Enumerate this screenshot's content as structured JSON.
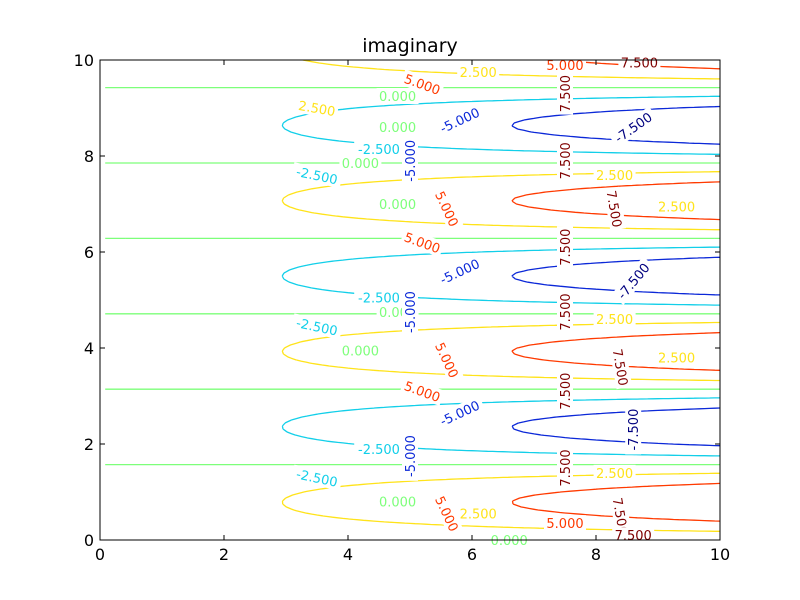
{
  "chart_data": {
    "type": "contour",
    "title": "imaginary",
    "xlim": [
      0,
      10
    ],
    "ylim": [
      0,
      10
    ],
    "x_ticks": [
      0,
      2,
      4,
      6,
      8,
      10
    ],
    "y_ticks": [
      0,
      2,
      4,
      6,
      8,
      10
    ],
    "grid": false,
    "colors": {
      "-7.5": "#00007f",
      "-5": "#0b28d8",
      "-2.5": "#12cfe9",
      "0": "#7dff7a",
      "2.5": "#ffe31a",
      "5": "#ff3a00",
      "7.5": "#7f0000"
    },
    "levels": [
      {
        "value": -7.5,
        "label": "-7.500"
      },
      {
        "value": -5,
        "label": "-5.000"
      },
      {
        "value": -2.5,
        "label": "-2.500"
      },
      {
        "value": 0,
        "label": "0.000"
      },
      {
        "value": 2.5,
        "label": "2.500"
      },
      {
        "value": 5,
        "label": "5.000"
      },
      {
        "value": 7.5,
        "label": "7.500"
      }
    ],
    "labels": [
      {
        "text": "7.500",
        "level": 7.5,
        "x": 8.7,
        "y": 9.95,
        "rot": 0
      },
      {
        "text": "5.000",
        "level": 5,
        "x": 7.5,
        "y": 9.9,
        "rot": 0
      },
      {
        "text": "2.500",
        "level": 2.5,
        "x": 6.1,
        "y": 9.75,
        "rot": 0
      },
      {
        "text": "5.000",
        "level": 5,
        "x": 5.2,
        "y": 9.5,
        "rot": 20
      },
      {
        "text": "7.500",
        "level": 7.5,
        "x": 7.5,
        "y": 9.3,
        "rot": -90
      },
      {
        "text": "2.500",
        "level": 2.5,
        "x": 3.5,
        "y": 9.0,
        "rot": 10
      },
      {
        "text": "0.000",
        "level": 0,
        "x": 4.8,
        "y": 9.25,
        "rot": 0
      },
      {
        "text": "-5.000",
        "level": -5,
        "x": 5.8,
        "y": 8.75,
        "rot": -25
      },
      {
        "text": "-7.500",
        "level": -7.5,
        "x": 8.6,
        "y": 8.6,
        "rot": -35
      },
      {
        "text": "0.000",
        "level": 0,
        "x": 4.8,
        "y": 8.6,
        "rot": 0
      },
      {
        "text": "-2.500",
        "level": -2.5,
        "x": 4.5,
        "y": 8.15,
        "rot": 0
      },
      {
        "text": "-5.000",
        "level": -5,
        "x": 5.0,
        "y": 7.9,
        "rot": -90
      },
      {
        "text": "7.500",
        "level": 7.5,
        "x": 7.5,
        "y": 7.9,
        "rot": -90
      },
      {
        "text": "0.000",
        "level": 0,
        "x": 4.2,
        "y": 7.85,
        "rot": 0
      },
      {
        "text": "-2.500",
        "level": -2.5,
        "x": 3.5,
        "y": 7.6,
        "rot": 12
      },
      {
        "text": "2.500",
        "level": 2.5,
        "x": 8.3,
        "y": 7.6,
        "rot": 0
      },
      {
        "text": "0.000",
        "level": 0,
        "x": 4.8,
        "y": 7.0,
        "rot": 0
      },
      {
        "text": "5.000",
        "level": 5,
        "x": 5.6,
        "y": 6.9,
        "rot": 65
      },
      {
        "text": "7.500",
        "level": 7.5,
        "x": 8.3,
        "y": 6.9,
        "rot": 80
      },
      {
        "text": "2.500",
        "level": 2.5,
        "x": 9.3,
        "y": 6.95,
        "rot": 0
      },
      {
        "text": "5.000",
        "level": 5,
        "x": 5.2,
        "y": 6.2,
        "rot": 20
      },
      {
        "text": "7.500",
        "level": 7.5,
        "x": 7.5,
        "y": 6.1,
        "rot": -90
      },
      {
        "text": "-5.000",
        "level": -5,
        "x": 5.8,
        "y": 5.6,
        "rot": -25
      },
      {
        "text": "-7.500",
        "level": -7.5,
        "x": 8.6,
        "y": 5.4,
        "rot": -50
      },
      {
        "text": "-2.500",
        "level": -2.5,
        "x": 4.5,
        "y": 5.05,
        "rot": 0
      },
      {
        "text": "0.000",
        "level": 0,
        "x": 4.8,
        "y": 4.75,
        "rot": 0
      },
      {
        "text": "-5.000",
        "level": -5,
        "x": 5.0,
        "y": 4.75,
        "rot": -90
      },
      {
        "text": "7.500",
        "level": 7.5,
        "x": 7.5,
        "y": 4.75,
        "rot": -90
      },
      {
        "text": "2.500",
        "level": 2.5,
        "x": 8.3,
        "y": 4.6,
        "rot": 0
      },
      {
        "text": "-2.500",
        "level": -2.5,
        "x": 3.5,
        "y": 4.45,
        "rot": 12
      },
      {
        "text": "0.000",
        "level": 0,
        "x": 4.2,
        "y": 3.95,
        "rot": 0
      },
      {
        "text": "2.500",
        "level": 2.5,
        "x": 9.3,
        "y": 3.8,
        "rot": 0
      },
      {
        "text": "5.000",
        "level": 5,
        "x": 5.6,
        "y": 3.75,
        "rot": 65
      },
      {
        "text": "7.500",
        "level": 7.5,
        "x": 8.4,
        "y": 3.6,
        "rot": 80
      },
      {
        "text": "5.000",
        "level": 5,
        "x": 5.2,
        "y": 3.1,
        "rot": 20
      },
      {
        "text": "7.500",
        "level": 7.5,
        "x": 7.5,
        "y": 3.1,
        "rot": -90
      },
      {
        "text": "-5.000",
        "level": -5,
        "x": 5.8,
        "y": 2.65,
        "rot": -25
      },
      {
        "text": "-7.500",
        "level": -7.5,
        "x": 8.6,
        "y": 2.3,
        "rot": -90
      },
      {
        "text": "-2.500",
        "level": -2.5,
        "x": 4.5,
        "y": 1.9,
        "rot": 0
      },
      {
        "text": "-5.000",
        "level": -5,
        "x": 5.0,
        "y": 1.75,
        "rot": -90
      },
      {
        "text": "7.500",
        "level": 7.5,
        "x": 7.5,
        "y": 1.5,
        "rot": -90
      },
      {
        "text": "2.500",
        "level": 2.5,
        "x": 8.3,
        "y": 1.4,
        "rot": 0
      },
      {
        "text": "-2.500",
        "level": -2.5,
        "x": 3.5,
        "y": 1.3,
        "rot": 12
      },
      {
        "text": "0.000",
        "level": 0,
        "x": 4.8,
        "y": 0.8,
        "rot": 0
      },
      {
        "text": "5.000",
        "level": 5,
        "x": 5.6,
        "y": 0.55,
        "rot": 65
      },
      {
        "text": "7.500",
        "level": 7.5,
        "x": 8.4,
        "y": 0.5,
        "rot": 80
      },
      {
        "text": "2.500",
        "level": 2.5,
        "x": 6.1,
        "y": 0.55,
        "rot": 0
      },
      {
        "text": "5.000",
        "level": 5,
        "x": 7.5,
        "y": 0.35,
        "rot": 0
      },
      {
        "text": "0.000",
        "level": 0,
        "x": 6.6,
        "y": 0.0,
        "rot": 0
      },
      {
        "text": "7.500",
        "level": 7.5,
        "x": 8.6,
        "y": 0.1,
        "rot": 0
      }
    ]
  }
}
